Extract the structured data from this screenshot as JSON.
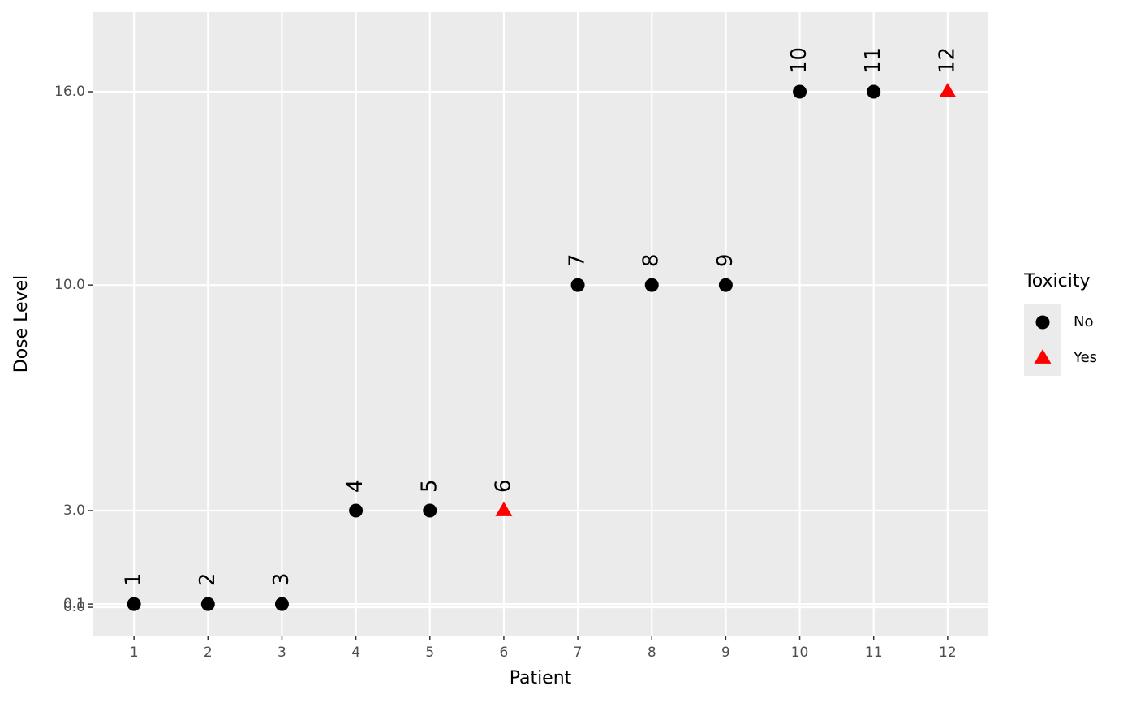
{
  "chart_data": {
    "type": "scatter",
    "x_label": "Patient",
    "y_label": "Dose Level",
    "legend_title": "Toxicity",
    "legend_position": "right",
    "grid": true,
    "xlim": [
      0.45,
      12.55
    ],
    "ylim": [
      -0.88,
      18.47
    ],
    "xticks": [
      1,
      2,
      3,
      4,
      5,
      6,
      7,
      8,
      9,
      10,
      11,
      12
    ],
    "yticks": [
      {
        "value": 0,
        "label": "0.0"
      },
      {
        "value": 0.1,
        "label": "0.1"
      },
      {
        "value": 3,
        "label": "3.0"
      },
      {
        "value": 10,
        "label": "10.0"
      },
      {
        "value": 16,
        "label": "16.0"
      }
    ],
    "series": [
      {
        "name": "No",
        "color": "#000000",
        "shape": "circle",
        "x": [
          1,
          2,
          3,
          4,
          5,
          7,
          8,
          9,
          10,
          11
        ],
        "values": [
          0.1,
          0.1,
          0.1,
          3,
          3,
          10,
          10,
          10,
          16,
          16
        ]
      },
      {
        "name": "Yes",
        "color": "#ff0000",
        "shape": "triangle",
        "x": [
          6,
          12
        ],
        "values": [
          3,
          16
        ]
      }
    ]
  }
}
